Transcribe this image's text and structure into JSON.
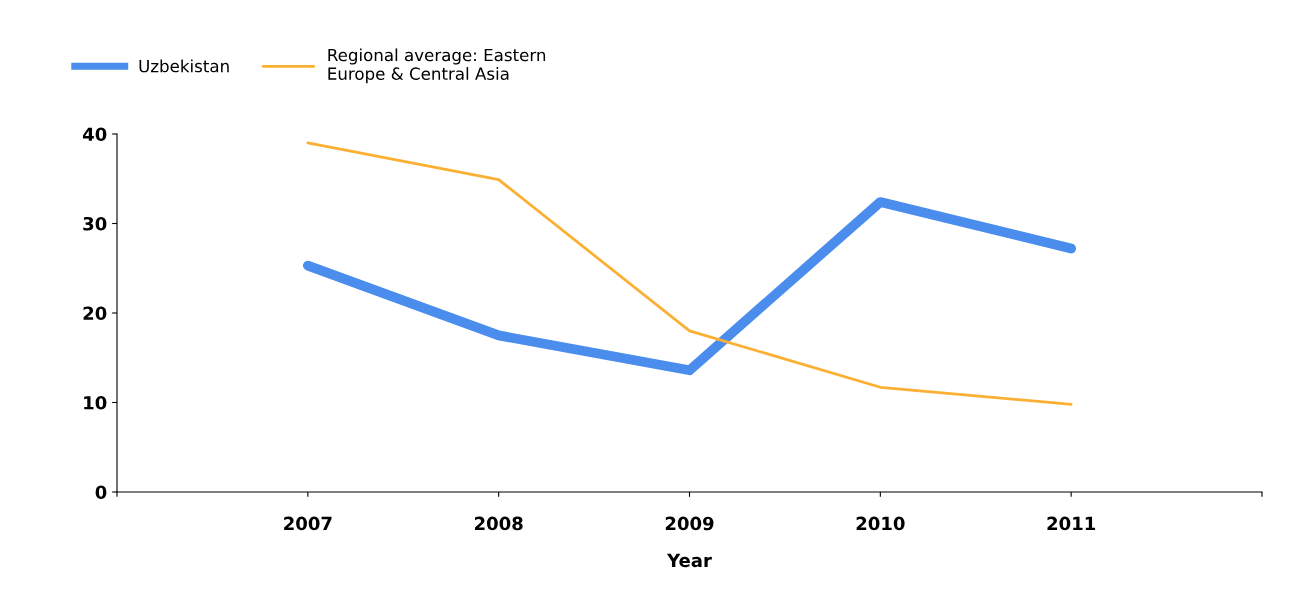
{
  "chart_data": {
    "type": "line",
    "xlabel": "Year",
    "x": [
      2007,
      2008,
      2009,
      2010,
      2011
    ],
    "series": [
      {
        "name": "Uzbekistan",
        "color": "#4a8ded",
        "values": [
          25.3,
          17.5,
          13.6,
          32.4,
          27.2
        ]
      },
      {
        "name": "Regional average: Eastern\nEurope & Central Asia",
        "color": "#fbb034",
        "values": [
          39.0,
          34.9,
          18.0,
          11.7,
          9.8
        ]
      }
    ],
    "xlim": [
      2006,
      2012
    ],
    "xticks": [
      {
        "value": 2006,
        "label": null
      },
      2007,
      2008,
      2009,
      2010,
      2011,
      {
        "value": 2012,
        "label": null
      }
    ],
    "ylim": [
      0,
      40
    ],
    "yticks": [
      0,
      10,
      20,
      30,
      40
    ],
    "grid": false,
    "legend": "top left",
    "marker": "none",
    "line_style": "solid"
  }
}
